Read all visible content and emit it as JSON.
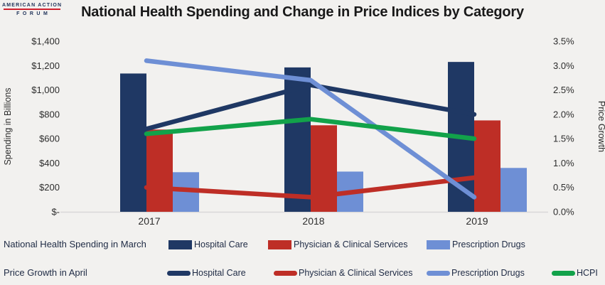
{
  "logo": {
    "line1": "AMERICAN ACTION",
    "line2": "FORUM"
  },
  "title": "National Health Spending and Change in Price Indices by Category",
  "chart_data": {
    "type": "combo-bar-line",
    "categories": [
      "2017",
      "2018",
      "2019"
    ],
    "left_axis": {
      "label": "Spending in Billions",
      "min": 0,
      "max": 1400,
      "tick_step": 200,
      "ticks": [
        "$1,400",
        "$1,200",
        "$1,000",
        "$800",
        "$600",
        "$400",
        "$200",
        "$-"
      ]
    },
    "right_axis": {
      "label": "Price Growth",
      "min": 0,
      "max": 3.5,
      "tick_step": 0.5,
      "ticks": [
        "3.5%",
        "3.0%",
        "2.5%",
        "2.0%",
        "1.5%",
        "1.0%",
        "0.5%",
        "0.0%"
      ]
    },
    "bar_series": [
      {
        "name": "Hospital Care",
        "color": "#1f3864",
        "values": [
          1135,
          1185,
          1230
        ]
      },
      {
        "name": "Physician & Clinical Services",
        "color": "#be2e26",
        "values": [
          675,
          710,
          750
        ]
      },
      {
        "name": "Prescription Drugs",
        "color": "#6e8fd5",
        "values": [
          325,
          330,
          360
        ]
      }
    ],
    "line_series": [
      {
        "name": "Hospital Care",
        "color": "#1f3864",
        "values": [
          1.7,
          2.6,
          2.0
        ]
      },
      {
        "name": "Physician & Clinical Services",
        "color": "#be2e26",
        "values": [
          0.5,
          0.3,
          0.7
        ]
      },
      {
        "name": "Prescription Drugs",
        "color": "#6e8fd5",
        "values": [
          3.1,
          2.7,
          0.3
        ]
      },
      {
        "name": "HCPI",
        "color": "#12a24a",
        "values": [
          1.6,
          1.9,
          1.5
        ]
      }
    ],
    "grid": false,
    "legend_position": "bottom"
  },
  "legend_bars": {
    "label": "National Health Spending in March"
  },
  "legend_lines": {
    "label": "Price Growth in April"
  }
}
